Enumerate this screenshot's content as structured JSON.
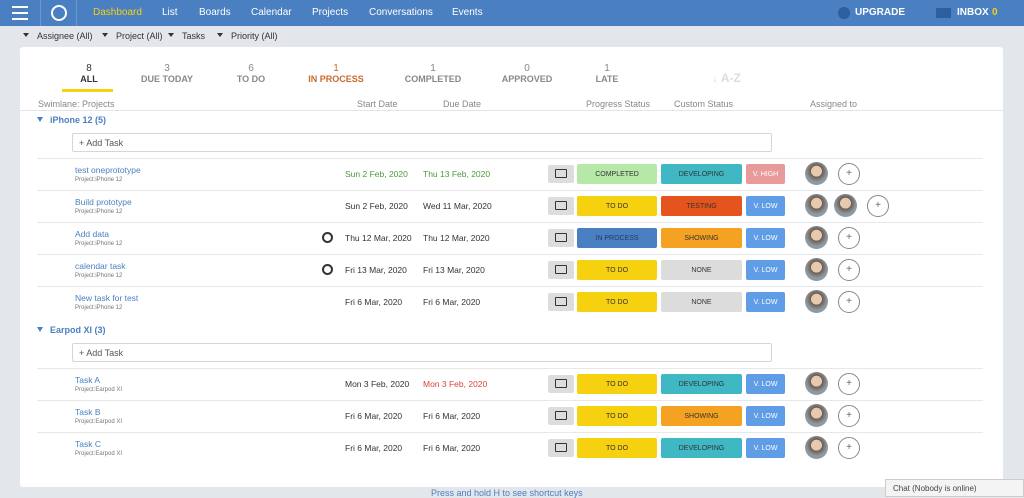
{
  "nav": {
    "items": [
      "Dashboard",
      "List",
      "Boards",
      "Calendar",
      "Projects",
      "Conversations",
      "Events"
    ],
    "upgrade": "UPGRADE",
    "inbox": "INBOX",
    "inbox_count": 0
  },
  "filters": [
    "Assignee (All)",
    "Project (All)",
    "Tasks",
    "Priority (All)"
  ],
  "tabs": [
    {
      "count": 8,
      "label": "ALL"
    },
    {
      "count": 3,
      "label": "DUE TODAY"
    },
    {
      "count": 6,
      "label": "TO DO"
    },
    {
      "count": 1,
      "label": "IN PROCESS"
    },
    {
      "count": 1,
      "label": "COMPLETED"
    },
    {
      "count": 0,
      "label": "APPROVED"
    },
    {
      "count": 1,
      "label": "LATE"
    }
  ],
  "sort": "↓ A-Z",
  "columns": [
    "Swimlane: Projects",
    "Start Date",
    "Due Date",
    "Progress Status",
    "Custom Status",
    "Assigned to"
  ],
  "groups": [
    {
      "title": "iPhone 12 (5)",
      "add_task": "+ Add Task",
      "tasks": [
        {
          "name": "test oneprototype",
          "project": "Project:iPhone 12",
          "start": "Sun 2 Feb, 2020",
          "due": "Thu 13 Feb, 2020",
          "progress": "COMPLETED",
          "custom": "DEVELOPING",
          "priority": "V. HIGH"
        },
        {
          "name": "Build prototype",
          "project": "Project:iPhone 12",
          "start": "Sun 2 Feb, 2020",
          "due": "Wed 11 Mar, 2020",
          "progress": "TO DO",
          "custom": "TESTING",
          "priority": "V. LOW"
        },
        {
          "name": "Add data",
          "project": "Project:iPhone 12",
          "start": "Thu 12 Mar, 2020",
          "due": "Thu 12 Mar, 2020",
          "progress": "IN PROCESS",
          "custom": "SHOWING",
          "priority": "V. LOW"
        },
        {
          "name": "calendar task",
          "project": "Project:iPhone 12",
          "start": "Fri 13 Mar, 2020",
          "due": "Fri 13 Mar, 2020",
          "progress": "TO DO",
          "custom": "NONE",
          "priority": "V. LOW"
        },
        {
          "name": "New task for test",
          "project": "Project:iPhone 12",
          "start": "Fri 6 Mar, 2020",
          "due": "Fri 6 Mar, 2020",
          "progress": "TO DO",
          "custom": "NONE",
          "priority": "V. LOW"
        }
      ]
    },
    {
      "title": "Earpod XI (3)",
      "add_task": "+ Add Task",
      "tasks": [
        {
          "name": "Task A",
          "project": "Project:Earpod XI",
          "start": "Mon 3 Feb, 2020",
          "due": "Mon 3 Feb, 2020",
          "progress": "TO DO",
          "custom": "DEVELOPING",
          "priority": "V. LOW"
        },
        {
          "name": "Task B",
          "project": "Project:Earpod XI",
          "start": "Fri 6 Mar, 2020",
          "due": "Fri 6 Mar, 2020",
          "progress": "TO DO",
          "custom": "SHOWING",
          "priority": "V. LOW"
        },
        {
          "name": "Task C",
          "project": "Project:Earpod XI",
          "start": "Fri 6 Mar, 2020",
          "due": "Fri 6 Mar, 2020",
          "progress": "TO DO",
          "custom": "DEVELOPING",
          "priority": "V. LOW"
        }
      ]
    }
  ],
  "footer": "Press and hold H to see shortcut keys",
  "chat": "Chat (Nobody is online)"
}
